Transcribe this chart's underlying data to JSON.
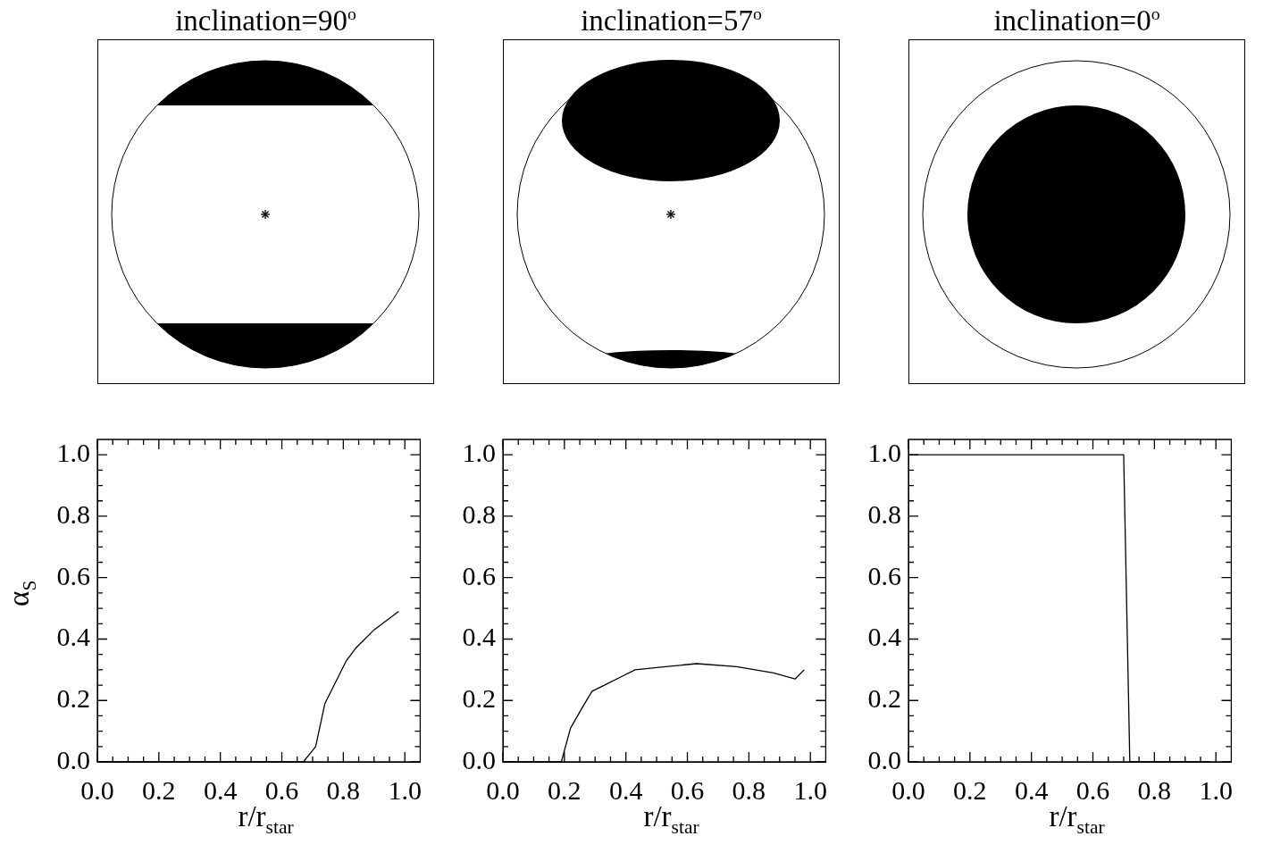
{
  "chart_data": [
    {
      "type": "line",
      "title": "inclination=90$^{o}$",
      "xlabel": "r/r$_{star}$",
      "ylabel": "α$_{S}$",
      "xlim": [
        0,
        1.05
      ],
      "ylim": [
        0,
        1.05
      ],
      "grid": false,
      "xticks": [
        {
          "value": 0,
          "label": "0.0"
        },
        {
          "value": 0.05,
          "label": null
        },
        {
          "value": 0.1,
          "label": null
        },
        {
          "value": 0.15,
          "label": null
        },
        {
          "value": 0.2,
          "label": "0.2"
        },
        {
          "value": 0.25,
          "label": null
        },
        {
          "value": 0.3,
          "label": null
        },
        {
          "value": 0.35,
          "label": null
        },
        {
          "value": 0.4,
          "label": "0.4"
        },
        {
          "value": 0.45,
          "label": null
        },
        {
          "value": 0.5,
          "label": null
        },
        {
          "value": 0.55,
          "label": null
        },
        {
          "value": 0.6,
          "label": "0.6"
        },
        {
          "value": 0.65,
          "label": null
        },
        {
          "value": 0.7,
          "label": null
        },
        {
          "value": 0.75,
          "label": null
        },
        {
          "value": 0.8,
          "label": "0.8"
        },
        {
          "value": 0.85,
          "label": null
        },
        {
          "value": 0.9,
          "label": null
        },
        {
          "value": 0.95,
          "label": null
        },
        {
          "value": 1,
          "label": "1.0"
        }
      ],
      "yticks": [
        {
          "value": 0,
          "label": "0.0"
        },
        {
          "value": 0.05,
          "label": null
        },
        {
          "value": 0.1,
          "label": null
        },
        {
          "value": 0.15,
          "label": null
        },
        {
          "value": 0.2,
          "label": "0.2"
        },
        {
          "value": 0.25,
          "label": null
        },
        {
          "value": 0.3,
          "label": null
        },
        {
          "value": 0.35,
          "label": null
        },
        {
          "value": 0.4,
          "label": "0.4"
        },
        {
          "value": 0.45,
          "label": null
        },
        {
          "value": 0.5,
          "label": null
        },
        {
          "value": 0.55,
          "label": null
        },
        {
          "value": 0.6,
          "label": "0.6"
        },
        {
          "value": 0.65,
          "label": null
        },
        {
          "value": 0.7,
          "label": null
        },
        {
          "value": 0.75,
          "label": null
        },
        {
          "value": 0.8,
          "label": "0.8"
        },
        {
          "value": 0.85,
          "label": null
        },
        {
          "value": 0.9,
          "label": null
        },
        {
          "value": 0.95,
          "label": null
        },
        {
          "value": 1,
          "label": "1.0"
        }
      ],
      "series": [
        {
          "color": "#000000",
          "x": [
            0,
            0.67,
            0.71,
            0.74,
            0.78,
            0.81,
            0.84,
            0.9,
            0.98
          ],
          "values": [
            0,
            0,
            0.05,
            0.19,
            0.27,
            0.33,
            0.37,
            0.43,
            0.49
          ]
        }
      ]
    },
    {
      "type": "line",
      "title": "inclination=57$^{o}$",
      "xlabel": "r/r$_{star}$",
      "xlim": [
        0,
        1.05
      ],
      "ylim": [
        0,
        1.05
      ],
      "grid": false,
      "xticks": [
        {
          "value": 0,
          "label": "0.0"
        },
        {
          "value": 0.05,
          "label": null
        },
        {
          "value": 0.1,
          "label": null
        },
        {
          "value": 0.15,
          "label": null
        },
        {
          "value": 0.2,
          "label": "0.2"
        },
        {
          "value": 0.25,
          "label": null
        },
        {
          "value": 0.3,
          "label": null
        },
        {
          "value": 0.35,
          "label": null
        },
        {
          "value": 0.4,
          "label": "0.4"
        },
        {
          "value": 0.45,
          "label": null
        },
        {
          "value": 0.5,
          "label": null
        },
        {
          "value": 0.55,
          "label": null
        },
        {
          "value": 0.6,
          "label": "0.6"
        },
        {
          "value": 0.65,
          "label": null
        },
        {
          "value": 0.7,
          "label": null
        },
        {
          "value": 0.75,
          "label": null
        },
        {
          "value": 0.8,
          "label": "0.8"
        },
        {
          "value": 0.85,
          "label": null
        },
        {
          "value": 0.9,
          "label": null
        },
        {
          "value": 0.95,
          "label": null
        },
        {
          "value": 1,
          "label": "1.0"
        }
      ],
      "yticks": [
        {
          "value": 0,
          "label": "0.0"
        },
        {
          "value": 0.05,
          "label": null
        },
        {
          "value": 0.1,
          "label": null
        },
        {
          "value": 0.15,
          "label": null
        },
        {
          "value": 0.2,
          "label": "0.2"
        },
        {
          "value": 0.25,
          "label": null
        },
        {
          "value": 0.3,
          "label": null
        },
        {
          "value": 0.35,
          "label": null
        },
        {
          "value": 0.4,
          "label": "0.4"
        },
        {
          "value": 0.45,
          "label": null
        },
        {
          "value": 0.5,
          "label": null
        },
        {
          "value": 0.55,
          "label": null
        },
        {
          "value": 0.6,
          "label": "0.6"
        },
        {
          "value": 0.65,
          "label": null
        },
        {
          "value": 0.7,
          "label": null
        },
        {
          "value": 0.75,
          "label": null
        },
        {
          "value": 0.8,
          "label": "0.8"
        },
        {
          "value": 0.85,
          "label": null
        },
        {
          "value": 0.9,
          "label": null
        },
        {
          "value": 0.95,
          "label": null
        },
        {
          "value": 1,
          "label": "1.0"
        }
      ],
      "series": [
        {
          "color": "#000000",
          "x": [
            0,
            0.19,
            0.22,
            0.26,
            0.29,
            0.33,
            0.39,
            0.43,
            0.53,
            0.63,
            0.76,
            0.88,
            0.95,
            0.98
          ],
          "values": [
            0,
            0,
            0.11,
            0.18,
            0.23,
            0.25,
            0.28,
            0.3,
            0.31,
            0.32,
            0.31,
            0.29,
            0.27,
            0.3
          ]
        }
      ]
    },
    {
      "type": "line",
      "title": "inclination=0$^{o}$",
      "xlabel": "r/r$_{star}$",
      "xlim": [
        0,
        1.05
      ],
      "ylim": [
        0,
        1.05
      ],
      "grid": false,
      "xticks": [
        {
          "value": 0,
          "label": "0.0"
        },
        {
          "value": 0.05,
          "label": null
        },
        {
          "value": 0.1,
          "label": null
        },
        {
          "value": 0.15,
          "label": null
        },
        {
          "value": 0.2,
          "label": "0.2"
        },
        {
          "value": 0.25,
          "label": null
        },
        {
          "value": 0.3,
          "label": null
        },
        {
          "value": 0.35,
          "label": null
        },
        {
          "value": 0.4,
          "label": "0.4"
        },
        {
          "value": 0.45,
          "label": null
        },
        {
          "value": 0.5,
          "label": null
        },
        {
          "value": 0.55,
          "label": null
        },
        {
          "value": 0.6,
          "label": "0.6"
        },
        {
          "value": 0.65,
          "label": null
        },
        {
          "value": 0.7,
          "label": null
        },
        {
          "value": 0.75,
          "label": null
        },
        {
          "value": 0.8,
          "label": "0.8"
        },
        {
          "value": 0.85,
          "label": null
        },
        {
          "value": 0.9,
          "label": null
        },
        {
          "value": 0.95,
          "label": null
        },
        {
          "value": 1,
          "label": "1.0"
        }
      ],
      "yticks": [
        {
          "value": 0,
          "label": "0.0"
        },
        {
          "value": 0.05,
          "label": null
        },
        {
          "value": 0.1,
          "label": null
        },
        {
          "value": 0.15,
          "label": null
        },
        {
          "value": 0.2,
          "label": "0.2"
        },
        {
          "value": 0.25,
          "label": null
        },
        {
          "value": 0.3,
          "label": null
        },
        {
          "value": 0.35,
          "label": null
        },
        {
          "value": 0.4,
          "label": "0.4"
        },
        {
          "value": 0.45,
          "label": null
        },
        {
          "value": 0.5,
          "label": null
        },
        {
          "value": 0.55,
          "label": null
        },
        {
          "value": 0.6,
          "label": "0.6"
        },
        {
          "value": 0.65,
          "label": null
        },
        {
          "value": 0.7,
          "label": null
        },
        {
          "value": 0.75,
          "label": null
        },
        {
          "value": 0.8,
          "label": "0.8"
        },
        {
          "value": 0.85,
          "label": null
        },
        {
          "value": 0.9,
          "label": null
        },
        {
          "value": 0.95,
          "label": null
        },
        {
          "value": 1,
          "label": "1.0"
        }
      ],
      "series": [
        {
          "color": "#000000",
          "x": [
            0,
            0,
            0.7,
            0.72,
            0.98
          ],
          "values": [
            0,
            1,
            1,
            0,
            0
          ]
        }
      ]
    }
  ]
}
